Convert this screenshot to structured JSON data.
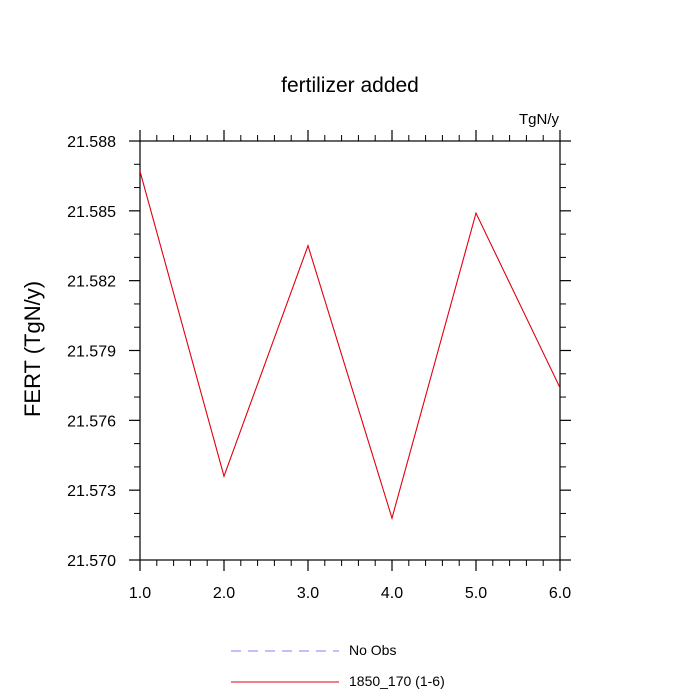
{
  "colors": {
    "series_line": "#e0000f",
    "no_obs_line": "#8080ff",
    "axis": "#000000"
  },
  "chart_data": {
    "type": "line",
    "title": "fertilizer added",
    "units_label": "TgN/y",
    "xlabel": "",
    "ylabel": "FERT  (TgN/y)",
    "xlim": [
      1.0,
      6.0
    ],
    "ylim": [
      21.57,
      21.588
    ],
    "x_ticks": [
      "1.0",
      "2.0",
      "3.0",
      "4.0",
      "5.0",
      "6.0"
    ],
    "y_ticks": [
      "21.570",
      "21.573",
      "21.576",
      "21.579",
      "21.582",
      "21.585",
      "21.588"
    ],
    "grid": false,
    "legend_position": "bottom",
    "series": [
      {
        "name": "1850_170 (1-6)",
        "x": [
          1.0,
          2.0,
          3.0,
          4.0,
          5.0,
          6.0
        ],
        "values": [
          21.5867,
          21.5736,
          21.5835,
          21.5718,
          21.5849,
          21.5774
        ]
      }
    ],
    "legend": [
      {
        "name": "No Obs",
        "style": "dashed"
      },
      {
        "name": "1850_170 (1-6)",
        "style": "solid"
      }
    ]
  }
}
